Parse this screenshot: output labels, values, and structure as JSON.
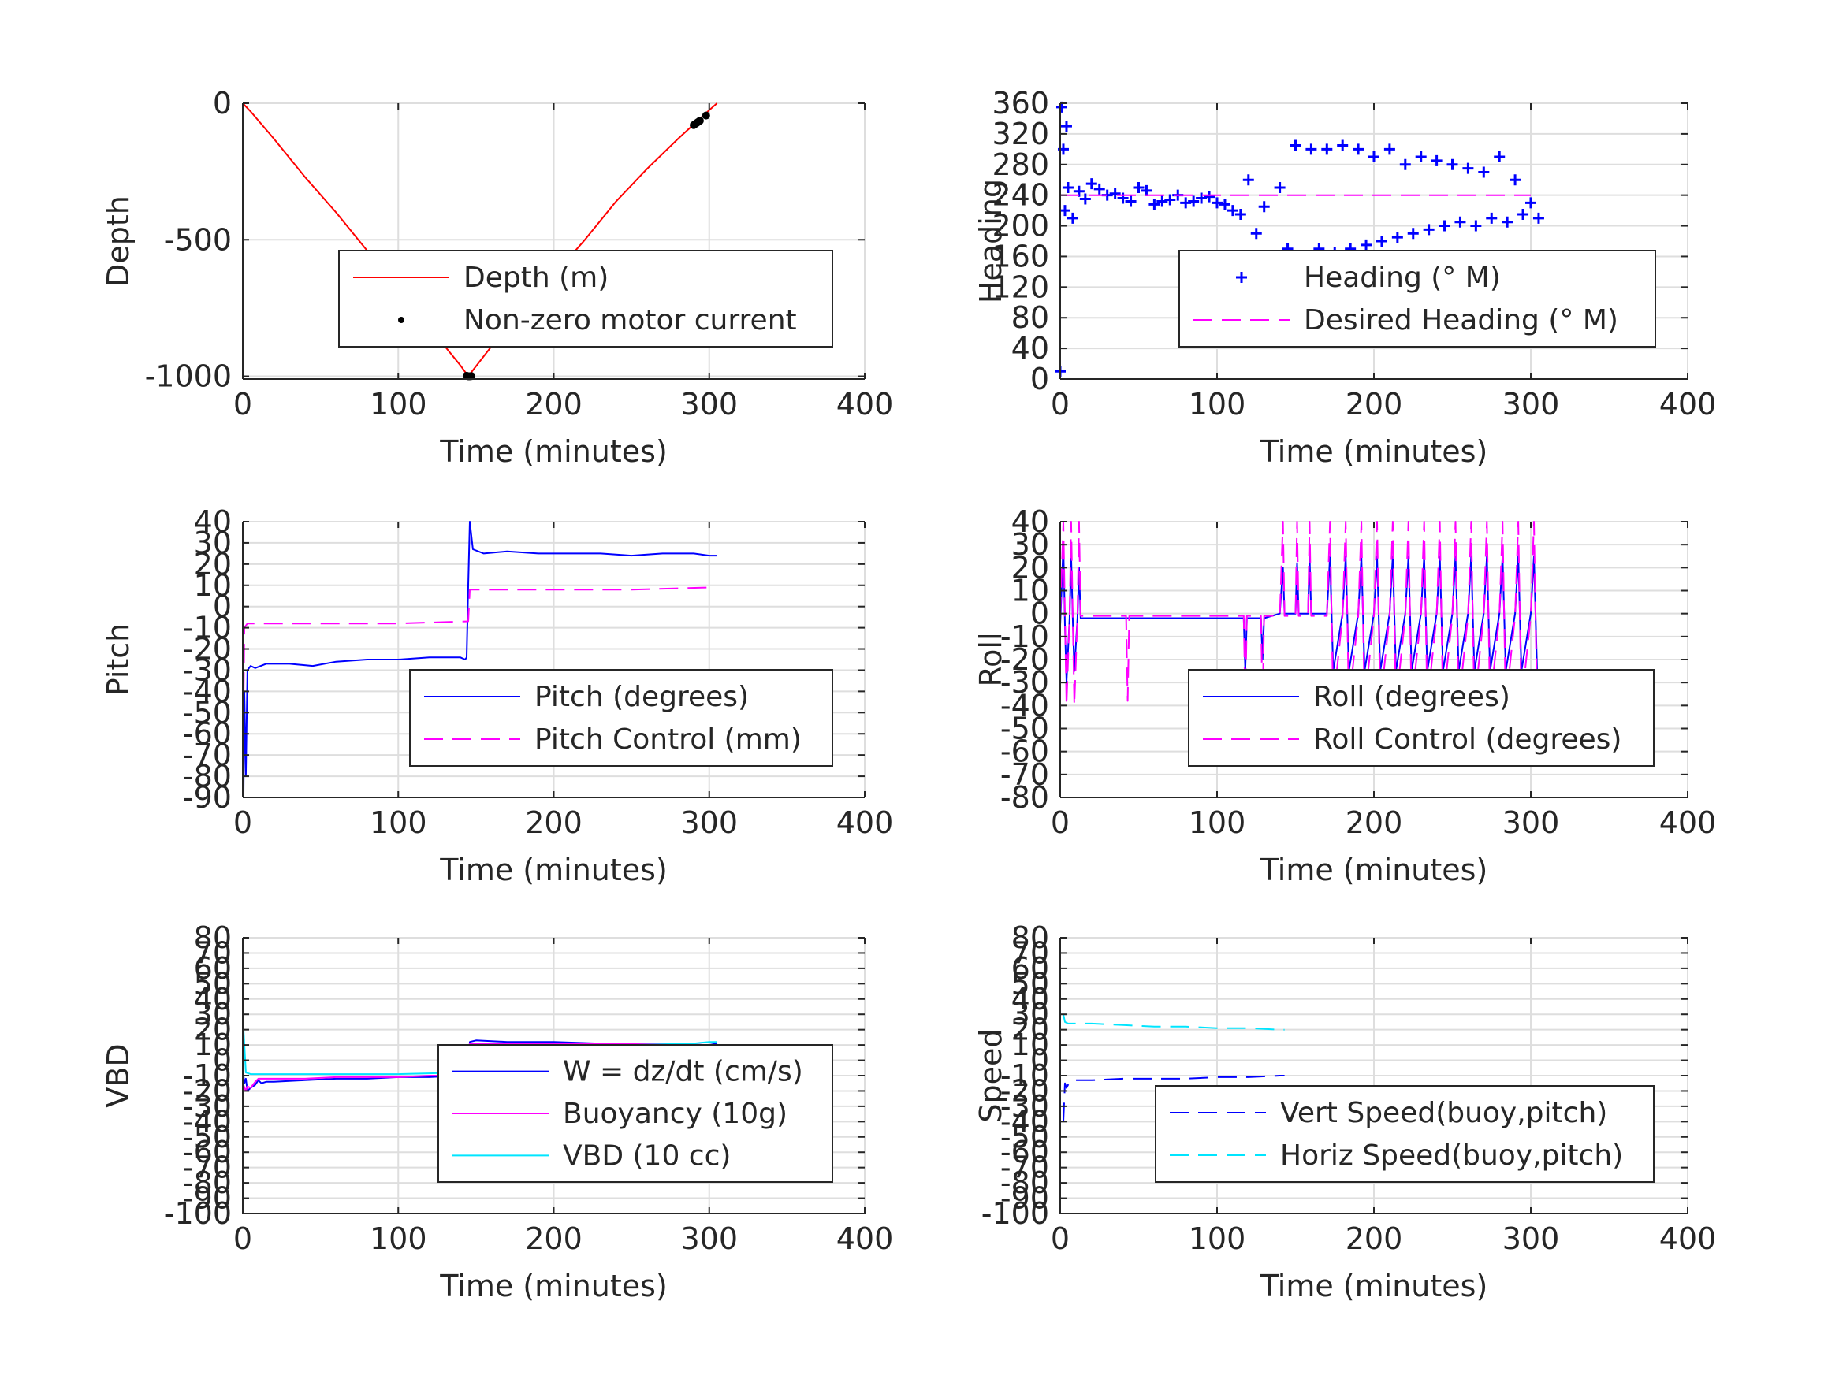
{
  "chart_data": [
    {
      "type": "line",
      "xlabel": "Time (minutes)",
      "ylabel": "Depth",
      "xlim": [
        0,
        400
      ],
      "ylim": [
        -1010,
        0
      ],
      "xticks": [
        0,
        100,
        200,
        300,
        400
      ],
      "yticks": [
        0,
        -500,
        -1000
      ],
      "grid": true,
      "legend_position": "center-right",
      "series": [
        {
          "name": "Depth (m)",
          "color": "#ff0000",
          "style": "solid",
          "x": [
            0,
            5,
            20,
            40,
            60,
            80,
            100,
            120,
            140,
            145,
            160,
            180,
            200,
            220,
            240,
            260,
            280,
            300,
            305
          ],
          "y": [
            0,
            -30,
            -130,
            -270,
            -400,
            -540,
            -680,
            -820,
            -960,
            -1000,
            -890,
            -760,
            -630,
            -500,
            -360,
            -240,
            -130,
            -25,
            0
          ]
        },
        {
          "name": "Non-zero motor current",
          "color": "#000000",
          "style": "points",
          "x": [
            144,
            145,
            146,
            147,
            290,
            291,
            292,
            293,
            294,
            298
          ],
          "y": [
            -998,
            -1000,
            -1000,
            -999,
            -80,
            -76,
            -72,
            -68,
            -64,
            -45
          ]
        }
      ]
    },
    {
      "type": "scatter",
      "xlabel": "Time (minutes)",
      "ylabel": "Heading",
      "xlim": [
        0,
        400
      ],
      "ylim": [
        0,
        360
      ],
      "xticks": [
        0,
        100,
        200,
        300,
        400
      ],
      "yticks": [
        0,
        40,
        80,
        120,
        160,
        200,
        240,
        280,
        320,
        360
      ],
      "grid": true,
      "legend_position": "lower-right",
      "series": [
        {
          "name": "Heading (° M)",
          "color": "#0000ff",
          "style": "plus",
          "x": [
            0,
            1,
            2,
            3,
            4,
            5,
            8,
            12,
            16,
            20,
            25,
            30,
            35,
            40,
            45,
            50,
            55,
            60,
            65,
            70,
            75,
            80,
            85,
            90,
            95,
            100,
            105,
            110,
            115,
            120,
            125,
            130,
            140,
            145,
            150,
            155,
            160,
            165,
            170,
            175,
            180,
            185,
            190,
            195,
            200,
            205,
            210,
            215,
            220,
            225,
            230,
            235,
            240,
            245,
            250,
            255,
            260,
            265,
            270,
            275,
            280,
            285,
            290,
            295,
            300,
            305
          ],
          "y": [
            10,
            355,
            300,
            220,
            330,
            250,
            210,
            245,
            235,
            255,
            248,
            240,
            242,
            236,
            232,
            250,
            246,
            228,
            232,
            234,
            240,
            230,
            232,
            236,
            238,
            230,
            228,
            220,
            215,
            260,
            190,
            225,
            250,
            170,
            305,
            160,
            300,
            170,
            300,
            165,
            305,
            170,
            300,
            175,
            290,
            180,
            300,
            185,
            280,
            190,
            290,
            195,
            285,
            200,
            280,
            205,
            275,
            200,
            270,
            210,
            290,
            205,
            260,
            215,
            230,
            210
          ]
        },
        {
          "name": "Desired Heading (° M)",
          "color": "#ff00ff",
          "style": "dashed",
          "x": [
            0,
            300
          ],
          "y": [
            240,
            240
          ]
        }
      ]
    },
    {
      "type": "line",
      "xlabel": "Time (minutes)",
      "ylabel": "Pitch",
      "xlim": [
        0,
        400
      ],
      "ylim": [
        -90,
        40
      ],
      "xticks": [
        0,
        100,
        200,
        300,
        400
      ],
      "yticks": [
        40,
        30,
        20,
        10,
        0,
        -10,
        -20,
        -30,
        -40,
        -50,
        -60,
        -70,
        -80,
        -90
      ],
      "grid": true,
      "legend_position": "lower-right",
      "series": [
        {
          "name": "Pitch (degrees)",
          "color": "#0000ff",
          "style": "solid",
          "x": [
            0,
            0.5,
            1,
            2,
            3,
            5,
            8,
            15,
            30,
            45,
            60,
            80,
            100,
            120,
            140,
            143,
            144,
            145,
            146,
            148,
            155,
            170,
            190,
            210,
            230,
            250,
            270,
            290,
            300,
            305
          ],
          "y": [
            -5,
            -88,
            -40,
            -80,
            -30,
            -28,
            -29,
            -27,
            -27,
            -28,
            -26,
            -25,
            -25,
            -24,
            -24,
            -25,
            -24,
            10,
            40,
            27,
            25,
            26,
            25,
            25,
            25,
            24,
            25,
            25,
            24,
            24
          ]
        },
        {
          "name": "Pitch Control (mm)",
          "color": "#ff00ff",
          "style": "dashed",
          "x": [
            0,
            1,
            3,
            10,
            50,
            100,
            145,
            146,
            150,
            200,
            250,
            300
          ],
          "y": [
            -80,
            -10,
            -8,
            -8,
            -8,
            -8,
            -7,
            8,
            8,
            8,
            8,
            9
          ]
        }
      ]
    },
    {
      "type": "line",
      "xlabel": "Time (minutes)",
      "ylabel": "Roll",
      "xlim": [
        0,
        400
      ],
      "ylim": [
        -80,
        40
      ],
      "xticks": [
        0,
        100,
        200,
        300,
        400
      ],
      "yticks": [
        40,
        30,
        20,
        10,
        0,
        -10,
        -20,
        -30,
        -40,
        -50,
        -60,
        -70,
        -80
      ],
      "grid": true,
      "legend_position": "lower-right",
      "series": [
        {
          "name": "Roll (degrees)",
          "color": "#0000ff",
          "style": "solid",
          "x": [
            0,
            2,
            3,
            4,
            6,
            7,
            8,
            9,
            11,
            12,
            13,
            20,
            40,
            42,
            43,
            44,
            60,
            80,
            100,
            117,
            118,
            119,
            120,
            128,
            129,
            130,
            140,
            142,
            143,
            144,
            148,
            150,
            151,
            152,
            156,
            158,
            159,
            160,
            170,
            172,
            173,
            174,
            180,
            182,
            183,
            184,
            190,
            192,
            193,
            194,
            200,
            202,
            203,
            204,
            210,
            212,
            213,
            214,
            220,
            222,
            223,
            224,
            230,
            232,
            233,
            234,
            240,
            242,
            243,
            244,
            250,
            252,
            253,
            254,
            260,
            262,
            263,
            264,
            270,
            272,
            273,
            274,
            280,
            282,
            283,
            284,
            290,
            292,
            293,
            294,
            300,
            302,
            303,
            304,
            305
          ],
          "y": [
            -5,
            30,
            -5,
            -30,
            -2,
            25,
            -2,
            -25,
            -2,
            20,
            -2,
            -2,
            -2,
            -2,
            -2,
            -2,
            -2,
            -2,
            -2,
            -2,
            -25,
            -2,
            -2,
            -2,
            -20,
            -2,
            0,
            20,
            0,
            0,
            0,
            0,
            22,
            0,
            0,
            0,
            25,
            0,
            0,
            25,
            0,
            -25,
            0,
            25,
            0,
            -25,
            0,
            25,
            0,
            -25,
            0,
            25,
            0,
            -25,
            0,
            25,
            0,
            -25,
            0,
            25,
            0,
            -25,
            0,
            25,
            0,
            -25,
            0,
            25,
            0,
            -25,
            0,
            25,
            0,
            -25,
            0,
            25,
            0,
            -25,
            0,
            25,
            0,
            -25,
            0,
            25,
            0,
            -25,
            0,
            25,
            0,
            -25,
            0,
            25,
            0,
            -25,
            -25
          ]
        },
        {
          "name": "Roll Control (degrees)",
          "color": "#ff00ff",
          "style": "dashed",
          "x": [
            0,
            2,
            3,
            4,
            6,
            7,
            8,
            9,
            11,
            12,
            13,
            20,
            40,
            42,
            43,
            44,
            60,
            80,
            100,
            117,
            118,
            119,
            120,
            128,
            129,
            130,
            140,
            142,
            143,
            144,
            148,
            150,
            151,
            152,
            156,
            158,
            159,
            160,
            170,
            172,
            173,
            174,
            180,
            182,
            183,
            184,
            190,
            192,
            193,
            194,
            200,
            202,
            203,
            204,
            210,
            212,
            213,
            214,
            220,
            222,
            223,
            224,
            230,
            232,
            233,
            234,
            240,
            242,
            243,
            244,
            250,
            252,
            253,
            254,
            260,
            262,
            263,
            264,
            270,
            272,
            273,
            274,
            280,
            282,
            283,
            284,
            290,
            292,
            293,
            294,
            300,
            302,
            303,
            304,
            305
          ],
          "y": [
            -1,
            40,
            -1,
            -40,
            -1,
            40,
            -1,
            -40,
            -1,
            40,
            -1,
            -1,
            -1,
            -1,
            -38,
            -1,
            -1,
            -1,
            -1,
            -1,
            -40,
            -1,
            -1,
            -1,
            -40,
            -1,
            -1,
            40,
            -1,
            -1,
            -1,
            -1,
            40,
            -1,
            -1,
            -1,
            40,
            -1,
            -1,
            40,
            -1,
            -40,
            -1,
            40,
            -1,
            -40,
            -1,
            40,
            -1,
            -40,
            -1,
            40,
            -1,
            -40,
            -1,
            40,
            -1,
            -40,
            -1,
            40,
            -1,
            -40,
            -1,
            40,
            -1,
            -40,
            -1,
            40,
            -1,
            -40,
            -1,
            40,
            -1,
            -40,
            -1,
            40,
            -1,
            -40,
            -1,
            40,
            -1,
            -40,
            -1,
            40,
            -1,
            -40,
            -1,
            40,
            -1,
            -40,
            -1,
            40,
            -1,
            -40,
            -40
          ]
        }
      ]
    },
    {
      "type": "line",
      "xlabel": "Time (minutes)",
      "ylabel": "VBD",
      "xlim": [
        0,
        400
      ],
      "ylim": [
        -100,
        80
      ],
      "xticks": [
        0,
        100,
        200,
        300,
        400
      ],
      "yticks": [
        80,
        70,
        60,
        50,
        40,
        30,
        20,
        10,
        0,
        -10,
        -20,
        -30,
        -40,
        -50,
        -60,
        -70,
        -80,
        -90,
        -100
      ],
      "grid": true,
      "legend_position": "center-right",
      "series": [
        {
          "name": "W = dz/dt (cm/s)",
          "color": "#0000ff",
          "style": "solid",
          "x": [
            0,
            1,
            2,
            3,
            5,
            8,
            10,
            12,
            15,
            20,
            40,
            60,
            80,
            100,
            120,
            140,
            145,
            146,
            150,
            170,
            200,
            230,
            260,
            280,
            290,
            300,
            305
          ],
          "y": [
            -5,
            -15,
            -12,
            -20,
            -18,
            -16,
            -13,
            -15,
            -14,
            -14,
            -13,
            -12,
            -12,
            -11,
            -11,
            -10,
            -9,
            12,
            13,
            12,
            12,
            11,
            11,
            11,
            10,
            10,
            11
          ]
        },
        {
          "name": "Buoyancy (10g)",
          "color": "#ff00ff",
          "style": "solid",
          "x": [
            0,
            2,
            3,
            5,
            8,
            10,
            15,
            20,
            40,
            60,
            80,
            100,
            120,
            140,
            145,
            146,
            150,
            200,
            250,
            300
          ],
          "y": [
            -15,
            -20,
            -17,
            -18,
            -14,
            -12,
            -12,
            -12,
            -12,
            -11,
            -11,
            -11,
            -10,
            -10,
            -9,
            11,
            11,
            11,
            11,
            10
          ]
        },
        {
          "name": "VBD (10 cc)",
          "color": "#00e5ff",
          "style": "solid",
          "x": [
            0,
            0.5,
            2,
            5,
            10,
            20,
            50,
            100,
            140,
            145,
            146,
            148,
            150,
            200,
            250,
            290,
            300,
            305
          ],
          "y": [
            -5,
            20,
            -8,
            -9,
            -9,
            -9,
            -9,
            -9,
            -8,
            -8,
            4,
            10,
            10,
            10,
            10,
            11,
            12,
            12
          ]
        }
      ]
    },
    {
      "type": "line",
      "xlabel": "Time (minutes)",
      "ylabel": "Speed",
      "xlim": [
        0,
        400
      ],
      "ylim": [
        -100,
        80
      ],
      "xticks": [
        0,
        100,
        200,
        300,
        400
      ],
      "yticks": [
        80,
        70,
        60,
        50,
        40,
        30,
        20,
        10,
        0,
        -10,
        -20,
        -30,
        -40,
        -50,
        -60,
        -70,
        -80,
        -90,
        -100
      ],
      "grid": true,
      "legend_position": "lower-right",
      "series": [
        {
          "name": "Vert Speed(buoy,pitch)",
          "color": "#0000ff",
          "style": "dashed",
          "x": [
            2,
            3,
            4,
            6,
            10,
            20,
            40,
            60,
            80,
            100,
            120,
            140,
            143
          ],
          "y": [
            -40,
            -15,
            -18,
            -14,
            -13,
            -13,
            -12,
            -12,
            -12,
            -11,
            -11,
            -10,
            -10
          ]
        },
        {
          "name": "Horiz Speed(buoy,pitch)",
          "color": "#00e5ff",
          "style": "dashed",
          "x": [
            2,
            3,
            5,
            10,
            20,
            40,
            60,
            80,
            100,
            120,
            140,
            143
          ],
          "y": [
            30,
            25,
            24,
            24,
            24,
            23,
            22,
            22,
            21,
            21,
            20,
            20
          ]
        }
      ]
    }
  ]
}
